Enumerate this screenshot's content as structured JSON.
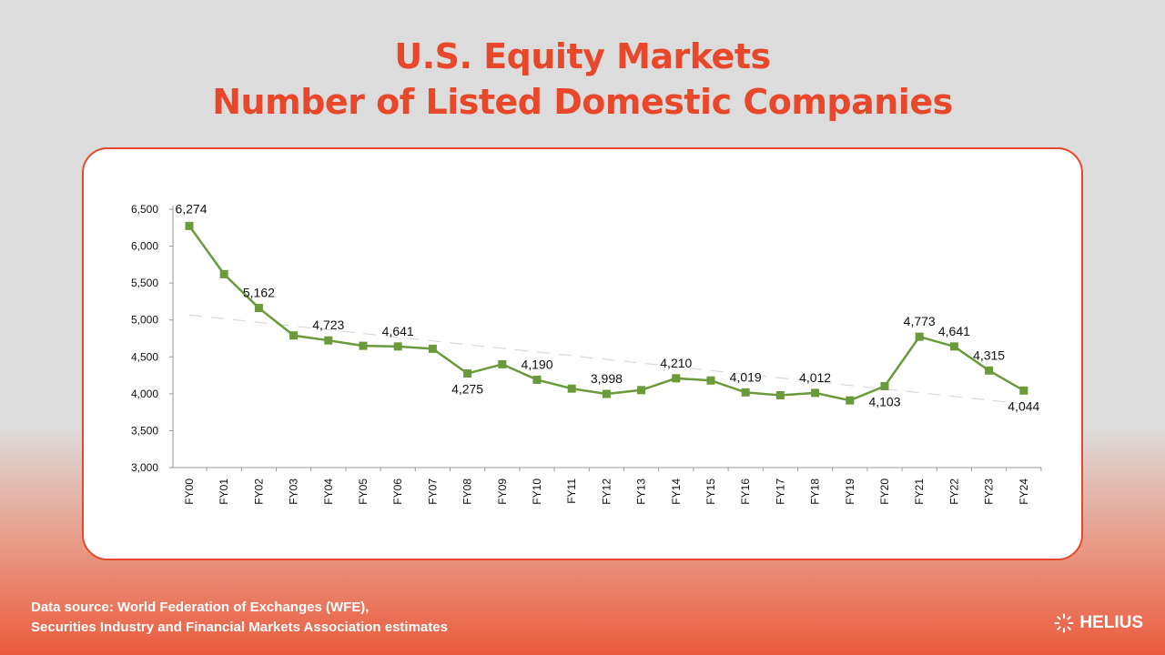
{
  "title_line1": "U.S. Equity Markets",
  "title_line2": "Number of Listed Domestic Companies",
  "source_line1": "Data source: World Federation of Exchanges (WFE),",
  "source_line2": "Securities Industry and Financial Markets Association estimates",
  "brand": "HELIUS",
  "colors": {
    "title": "#e8472a",
    "line": "#6a9a3a",
    "trend": "#d9d9d9"
  },
  "chart_data": {
    "type": "line",
    "categories": [
      "FY00",
      "FY01",
      "FY02",
      "FY03",
      "FY04",
      "FY05",
      "FY06",
      "FY07",
      "FY08",
      "FY09",
      "FY10",
      "FY11",
      "FY12",
      "FY13",
      "FY14",
      "FY15",
      "FY16",
      "FY17",
      "FY18",
      "FY19",
      "FY20",
      "FY21",
      "FY22",
      "FY23",
      "FY24"
    ],
    "series": [
      {
        "values": [
          6274,
          5620,
          5162,
          4790,
          4723,
          4650,
          4641,
          4610,
          4275,
          4400,
          4190,
          4070,
          3998,
          4050,
          4210,
          4180,
          4019,
          3980,
          4012,
          3910,
          4103,
          4773,
          4641,
          4315,
          4044
        ]
      }
    ],
    "data_labels": [
      {
        "index": 0,
        "text": "6,274"
      },
      {
        "index": 2,
        "text": "5,162"
      },
      {
        "index": 4,
        "text": "4,723"
      },
      {
        "index": 6,
        "text": "4,641"
      },
      {
        "index": 8,
        "text": "4,275"
      },
      {
        "index": 10,
        "text": "4,190"
      },
      {
        "index": 12,
        "text": "3,998"
      },
      {
        "index": 14,
        "text": "4,210"
      },
      {
        "index": 16,
        "text": "4,019"
      },
      {
        "index": 18,
        "text": "4,012"
      },
      {
        "index": 20,
        "text": "4,103"
      },
      {
        "index": 21,
        "text": "4,773"
      },
      {
        "index": 22,
        "text": "4,641"
      },
      {
        "index": 23,
        "text": "4,315"
      },
      {
        "index": 24,
        "text": "4,044"
      }
    ],
    "y_ticks": [
      "3,000",
      "3,500",
      "4,000",
      "4,500",
      "5,000",
      "5,500",
      "6,000",
      "6,500"
    ],
    "ylim": [
      3000,
      6500
    ],
    "trendline": true,
    "grid": false,
    "legend": "none"
  }
}
